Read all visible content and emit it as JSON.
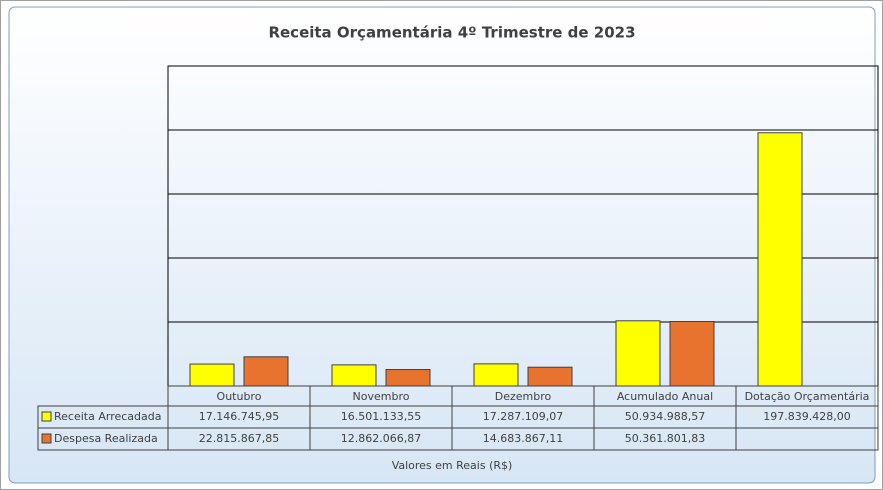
{
  "chart_data": {
    "type": "bar",
    "title": "Receita Orçamentária 4º Trimestre de 2023",
    "x_label": "Valores em Reais (R$)",
    "categories": [
      "Outubro",
      "Novembro",
      "Dezembro",
      "Acumulado Anual",
      "Dotação Orçamentária"
    ],
    "series": [
      {
        "name": "Receita Arrecadada",
        "color": "#ffff00",
        "values": [
          17146745.95,
          16501133.55,
          17287109.07,
          50934988.57,
          197839428.0
        ],
        "value_labels": [
          "17.146.745,95",
          "16.501.133,55",
          "17.287.109,07",
          "50.934.988,57",
          "197.839.428,00"
        ]
      },
      {
        "name": "Despesa Realizada",
        "color": "#e8732f",
        "values": [
          22815867.85,
          12862066.87,
          14683867.11,
          50361801.83,
          null
        ],
        "value_labels": [
          "22.815.867,85",
          "12.862.066,87",
          "14.683.867,11",
          "50.361.801,83",
          null
        ]
      }
    ],
    "ylim": [
      0,
      250000000
    ],
    "yticks": [
      0,
      50000000,
      100000000,
      150000000,
      200000000,
      250000000
    ],
    "grid": true
  }
}
